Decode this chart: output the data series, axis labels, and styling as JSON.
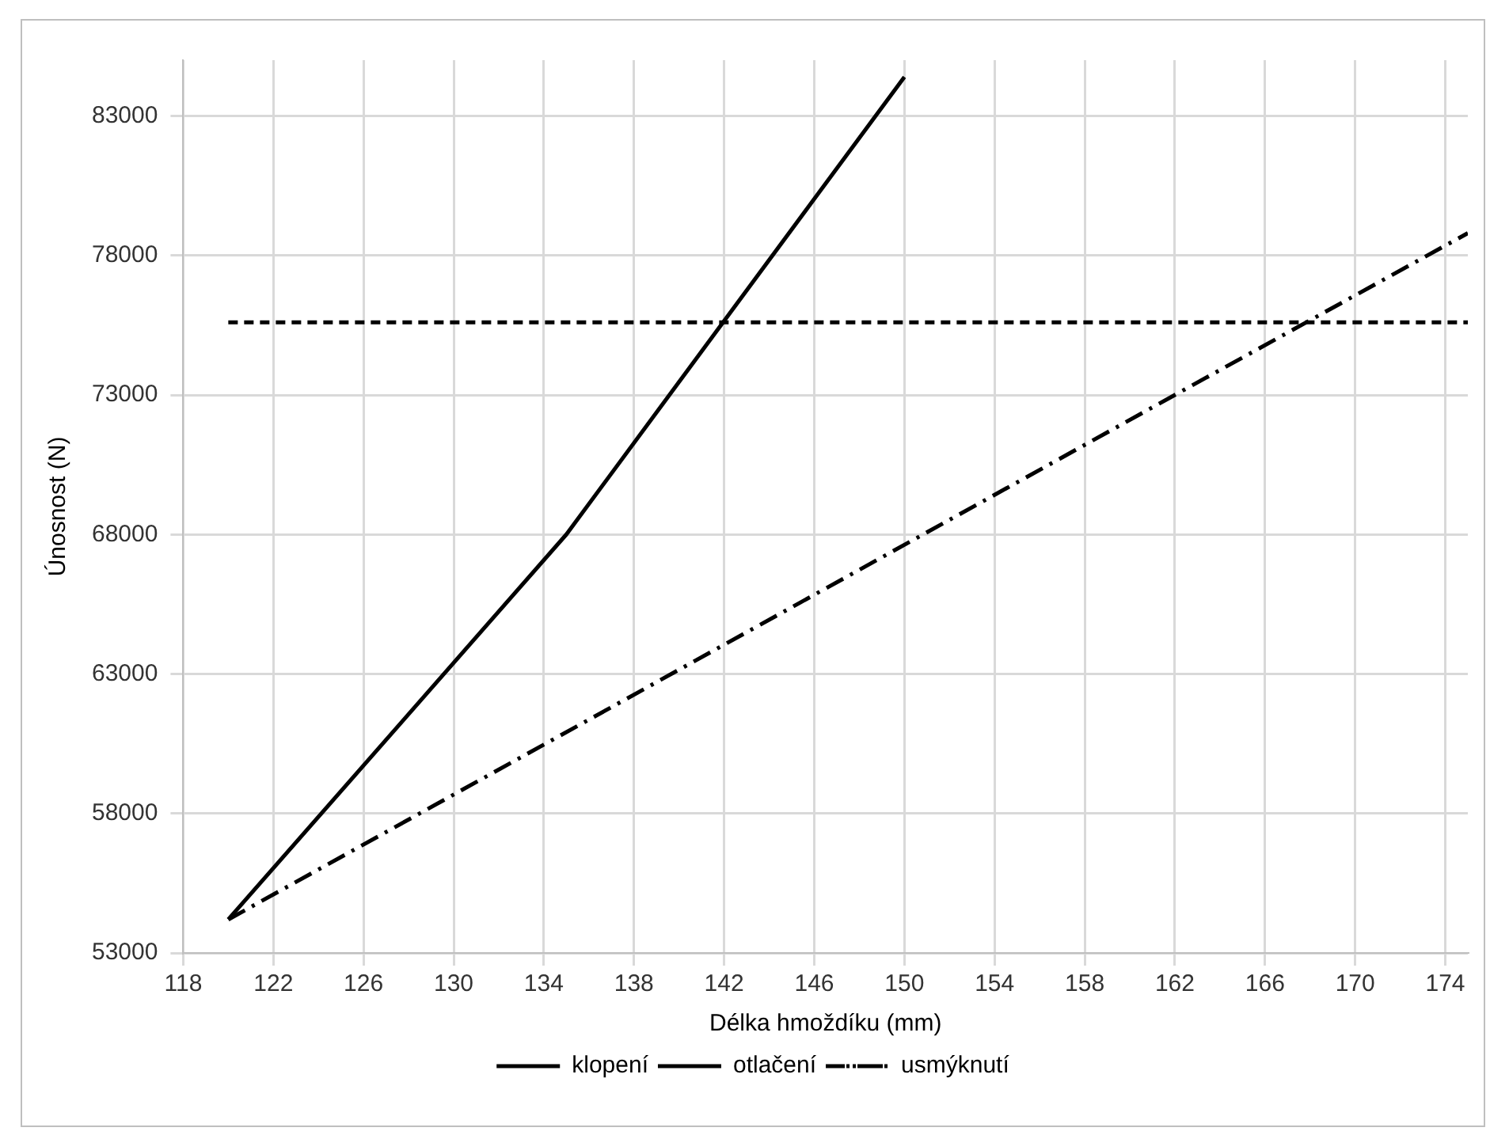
{
  "chart_data": {
    "type": "line",
    "xlabel": "Délka hmoždíku (mm)",
    "ylabel": "Únosnost (N)",
    "xlim": [
      118,
      175
    ],
    "xticks": [
      118,
      122,
      126,
      130,
      134,
      138,
      142,
      146,
      150,
      154,
      158,
      162,
      166,
      170,
      174
    ],
    "ylim": [
      53000,
      85000
    ],
    "yticks": [
      53000,
      58000,
      63000,
      68000,
      73000,
      78000,
      83000
    ],
    "grid": true,
    "legend": "bottom",
    "marker": "none",
    "series": [
      {
        "name": "klopení",
        "color": "#000000",
        "line_style": "solid",
        "x": [
          120,
          135,
          150
        ],
        "values": [
          54200,
          68000,
          84400
        ]
      },
      {
        "name": "otlačení",
        "color": "#000000",
        "line_style": "dashed",
        "x": [
          120,
          175
        ],
        "values": [
          75600,
          75600
        ]
      },
      {
        "name": "usmýknutí",
        "color": "#000000",
        "line_style": "dashdot",
        "x": [
          120,
          162,
          175
        ],
        "values": [
          54200,
          73000,
          78800
        ]
      }
    ]
  }
}
